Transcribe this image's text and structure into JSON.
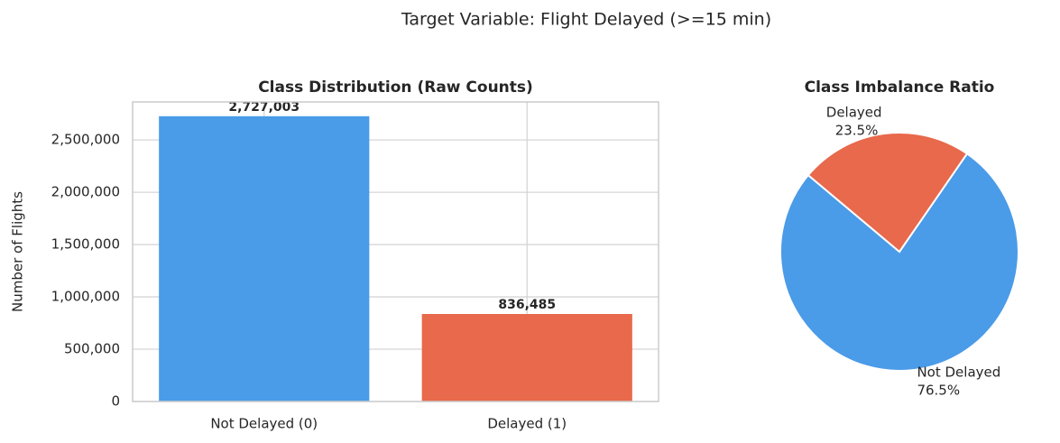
{
  "title": "Target Variable: Flight Delayed (>=15 min)",
  "chart_data": [
    {
      "type": "bar",
      "title": "Class Distribution (Raw Counts)",
      "ylabel": "Number of Flights",
      "categories": [
        "Not Delayed (0)",
        "Delayed (1)"
      ],
      "values": [
        2727003,
        836485
      ],
      "value_labels": [
        "2,727,003",
        "836,485"
      ],
      "colors": [
        "#4a9be8",
        "#e8694b"
      ],
      "ylim": [
        0,
        2863353
      ],
      "yticks": [
        0,
        {
          "value": 500000,
          "label": "500,000"
        },
        {
          "value": 1000000,
          "label": "1,000,000"
        },
        {
          "value": 1500000,
          "label": "1,500,000"
        },
        {
          "value": 2000000,
          "label": "2,000,000"
        },
        {
          "value": 2500000,
          "label": "2,500,000"
        }
      ],
      "grid": true
    },
    {
      "type": "pie",
      "title": "Class Imbalance Ratio",
      "categories": [
        "Not Delayed",
        "Delayed"
      ],
      "values": [
        76.5,
        23.5
      ],
      "value_labels": [
        "76.5%",
        "23.5%"
      ],
      "colors": [
        "#4a9be8",
        "#e8694b"
      ],
      "startangle": 140
    }
  ]
}
